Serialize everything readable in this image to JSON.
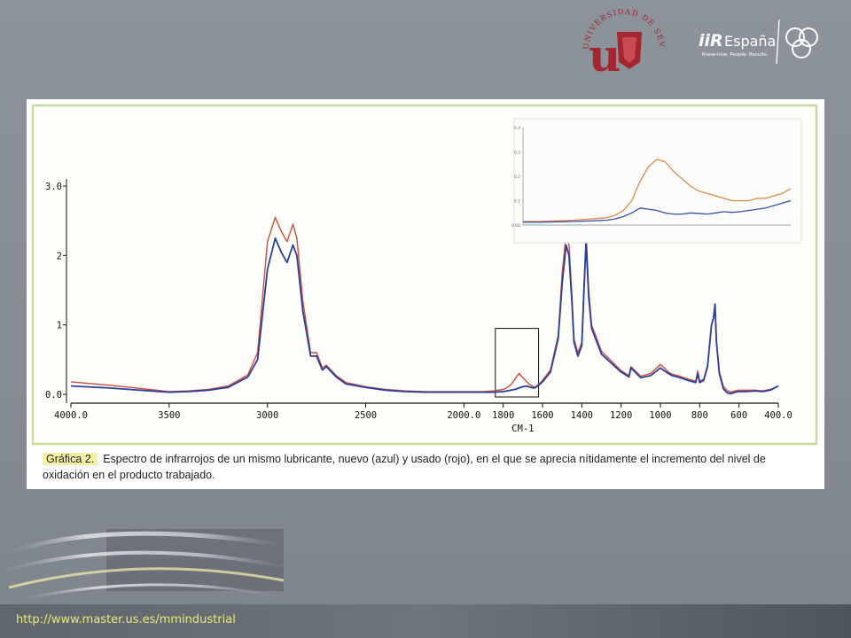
{
  "logos": {
    "university_arc": "UNIVERSIDAD DE SEVILLA",
    "university_letter": "u",
    "iir_main": "iiR",
    "iir_country": "España",
    "iir_tagline": "Know-how. People. Results."
  },
  "footer": {
    "url": "http://www.master.us.es/mmindustrial"
  },
  "caption": {
    "label": "Gráfica 2.",
    "text": "Espectro de infrarrojos de un mismo lubricante, nuevo (azul) y usado (rojo), en el que se aprecia nítidamente el incremento del nivel de oxidación en el producto trabajado."
  },
  "colors": {
    "new_oil": "#2b3f9c",
    "used_oil": "#d24c3a",
    "inset_used": "#e08a4a",
    "inset_new": "#3a52a8",
    "frame": "#c7dca0"
  },
  "chart_data": [
    {
      "type": "line",
      "xlabel": "CM-1",
      "ylabel": "",
      "xlim": [
        4000,
        400
      ],
      "ylim": [
        0,
        3.0
      ],
      "x_ticks": [
        "4000.0",
        "3500",
        "3000",
        "2500",
        "2000.0",
        "1800",
        "1600",
        "1400",
        "1200",
        "1000",
        "800",
        "600",
        "400.0"
      ],
      "y_ticks": [
        "0.0",
        "1",
        "2",
        "3.0"
      ],
      "x": [
        4000,
        3800,
        3600,
        3500,
        3400,
        3300,
        3200,
        3100,
        3050,
        3000,
        2960,
        2930,
        2900,
        2870,
        2850,
        2820,
        2780,
        2750,
        2720,
        2700,
        2650,
        2600,
        2500,
        2400,
        2300,
        2200,
        2100,
        2000,
        1900,
        1850,
        1800,
        1780,
        1760,
        1740,
        1720,
        1700,
        1680,
        1660,
        1640,
        1620,
        1600,
        1560,
        1520,
        1500,
        1480,
        1465,
        1450,
        1440,
        1420,
        1400,
        1390,
        1378,
        1365,
        1350,
        1300,
        1250,
        1200,
        1160,
        1150,
        1100,
        1050,
        1000,
        980,
        960,
        940,
        900,
        860,
        820,
        810,
        800,
        780,
        760,
        740,
        730,
        722,
        715,
        700,
        680,
        660,
        640,
        620,
        600,
        560,
        520,
        480,
        440,
        400
      ],
      "series": [
        {
          "values": [
            0.12,
            0.09,
            0.05,
            0.03,
            0.04,
            0.06,
            0.1,
            0.25,
            0.5,
            1.8,
            2.25,
            2.05,
            1.9,
            2.15,
            2.0,
            1.2,
            0.55,
            0.55,
            0.35,
            0.4,
            0.25,
            0.15,
            0.1,
            0.06,
            0.04,
            0.03,
            0.03,
            0.03,
            0.03,
            0.03,
            0.04,
            0.05,
            0.06,
            0.07,
            0.09,
            0.11,
            0.12,
            0.1,
            0.09,
            0.13,
            0.18,
            0.32,
            0.8,
            1.6,
            2.15,
            2.0,
            1.3,
            0.75,
            0.55,
            0.7,
            1.4,
            2.2,
            1.4,
            0.95,
            0.58,
            0.45,
            0.32,
            0.25,
            0.38,
            0.24,
            0.27,
            0.38,
            0.34,
            0.3,
            0.27,
            0.24,
            0.2,
            0.17,
            0.3,
            0.17,
            0.2,
            0.4,
            1.0,
            1.1,
            1.3,
            0.75,
            0.3,
            0.08,
            0.02,
            0.01,
            0.03,
            0.04,
            0.04,
            0.05,
            0.04,
            0.06,
            0.12
          ]
        },
        {
          "values": [
            0.18,
            0.13,
            0.07,
            0.04,
            0.05,
            0.07,
            0.12,
            0.28,
            0.6,
            2.2,
            2.55,
            2.35,
            2.2,
            2.45,
            2.25,
            1.35,
            0.6,
            0.6,
            0.38,
            0.42,
            0.27,
            0.17,
            0.11,
            0.07,
            0.05,
            0.04,
            0.04,
            0.04,
            0.04,
            0.05,
            0.07,
            0.1,
            0.14,
            0.22,
            0.3,
            0.24,
            0.18,
            0.13,
            0.1,
            0.14,
            0.2,
            0.35,
            0.85,
            1.75,
            2.3,
            2.15,
            1.4,
            0.8,
            0.6,
            0.75,
            1.5,
            2.3,
            1.5,
            1.0,
            0.62,
            0.48,
            0.34,
            0.27,
            0.4,
            0.26,
            0.3,
            0.43,
            0.38,
            0.32,
            0.29,
            0.26,
            0.22,
            0.19,
            0.34,
            0.19,
            0.22,
            0.42,
            1.0,
            1.1,
            1.3,
            0.75,
            0.32,
            0.12,
            0.05,
            0.03,
            0.05,
            0.06,
            0.06,
            0.06,
            0.05,
            0.07,
            0.12
          ]
        }
      ]
    },
    {
      "type": "line",
      "title": "",
      "xlim": [
        1900,
        1580
      ],
      "ylim": [
        0,
        0.4
      ],
      "y_ticks": [
        "0.00",
        "0.1",
        "0.2",
        "0.3",
        "0.4"
      ],
      "x": [
        1900,
        1880,
        1860,
        1840,
        1820,
        1800,
        1790,
        1780,
        1770,
        1760,
        1750,
        1740,
        1730,
        1720,
        1710,
        1700,
        1690,
        1680,
        1670,
        1660,
        1650,
        1640,
        1630,
        1620,
        1610,
        1600,
        1590,
        1580
      ],
      "series": [
        {
          "values": [
            0.015,
            0.015,
            0.017,
            0.02,
            0.025,
            0.03,
            0.04,
            0.06,
            0.1,
            0.18,
            0.24,
            0.27,
            0.26,
            0.22,
            0.19,
            0.16,
            0.14,
            0.13,
            0.12,
            0.11,
            0.1,
            0.1,
            0.1,
            0.11,
            0.11,
            0.12,
            0.13,
            0.15
          ]
        },
        {
          "values": [
            0.012,
            0.012,
            0.013,
            0.015,
            0.017,
            0.02,
            0.025,
            0.035,
            0.05,
            0.07,
            0.065,
            0.06,
            0.05,
            0.045,
            0.045,
            0.05,
            0.048,
            0.045,
            0.05,
            0.055,
            0.052,
            0.055,
            0.06,
            0.065,
            0.07,
            0.08,
            0.09,
            0.1
          ]
        }
      ]
    }
  ]
}
